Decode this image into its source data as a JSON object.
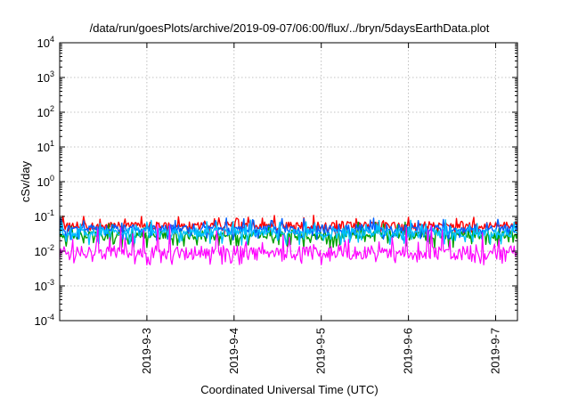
{
  "chart_data": {
    "type": "line",
    "title": "/data/run/goesPlots/archive/2019-09-07/06:00/flux/../bryn/5daysEarthData.plot",
    "xlabel": "Coordinated Universal Time (UTC)",
    "ylabel": "cSv/day",
    "y_scale": "log",
    "ylim": [
      0.0001,
      10000
    ],
    "xlim": [
      "2019-09-02T00:00",
      "2019-09-07T06:00"
    ],
    "grid": true,
    "legend": "none",
    "y_ticks": [
      {
        "value": 0.0001,
        "base": "10",
        "exp": "-4"
      },
      {
        "value": 0.001,
        "base": "10",
        "exp": "-3"
      },
      {
        "value": 0.01,
        "base": "10",
        "exp": "-2"
      },
      {
        "value": 0.1,
        "base": "10",
        "exp": "-1"
      },
      {
        "value": 1,
        "base": "10",
        "exp": "0"
      },
      {
        "value": 10,
        "base": "10",
        "exp": "1"
      },
      {
        "value": 100,
        "base": "10",
        "exp": "2"
      },
      {
        "value": 1000,
        "base": "10",
        "exp": "3"
      },
      {
        "value": 10000,
        "base": "10",
        "exp": "4"
      }
    ],
    "x_ticks": [
      {
        "value": "2019-09-03T00:00",
        "label": "2019-9-3"
      },
      {
        "value": "2019-09-04T00:00",
        "label": "2019-9-4"
      },
      {
        "value": "2019-09-05T00:00",
        "label": "2019-9-5"
      },
      {
        "value": "2019-09-06T00:00",
        "label": "2019-9-6"
      },
      {
        "value": "2019-09-07T00:00",
        "label": "2019-9-7"
      }
    ],
    "series": [
      {
        "color": "#ff0000",
        "typical": 0.055,
        "low": 0.03,
        "high": 0.11
      },
      {
        "color": "#00a000",
        "typical": 0.03,
        "low": 0.012,
        "high": 0.07
      },
      {
        "color": "#0060ff",
        "typical": 0.045,
        "low": 0.02,
        "high": 0.09
      },
      {
        "color": "#00c0ff",
        "typical": 0.035,
        "low": 0.015,
        "high": 0.08
      },
      {
        "color": "#ff00ff",
        "typical": 0.009,
        "low": 0.004,
        "high": 0.06
      }
    ]
  }
}
